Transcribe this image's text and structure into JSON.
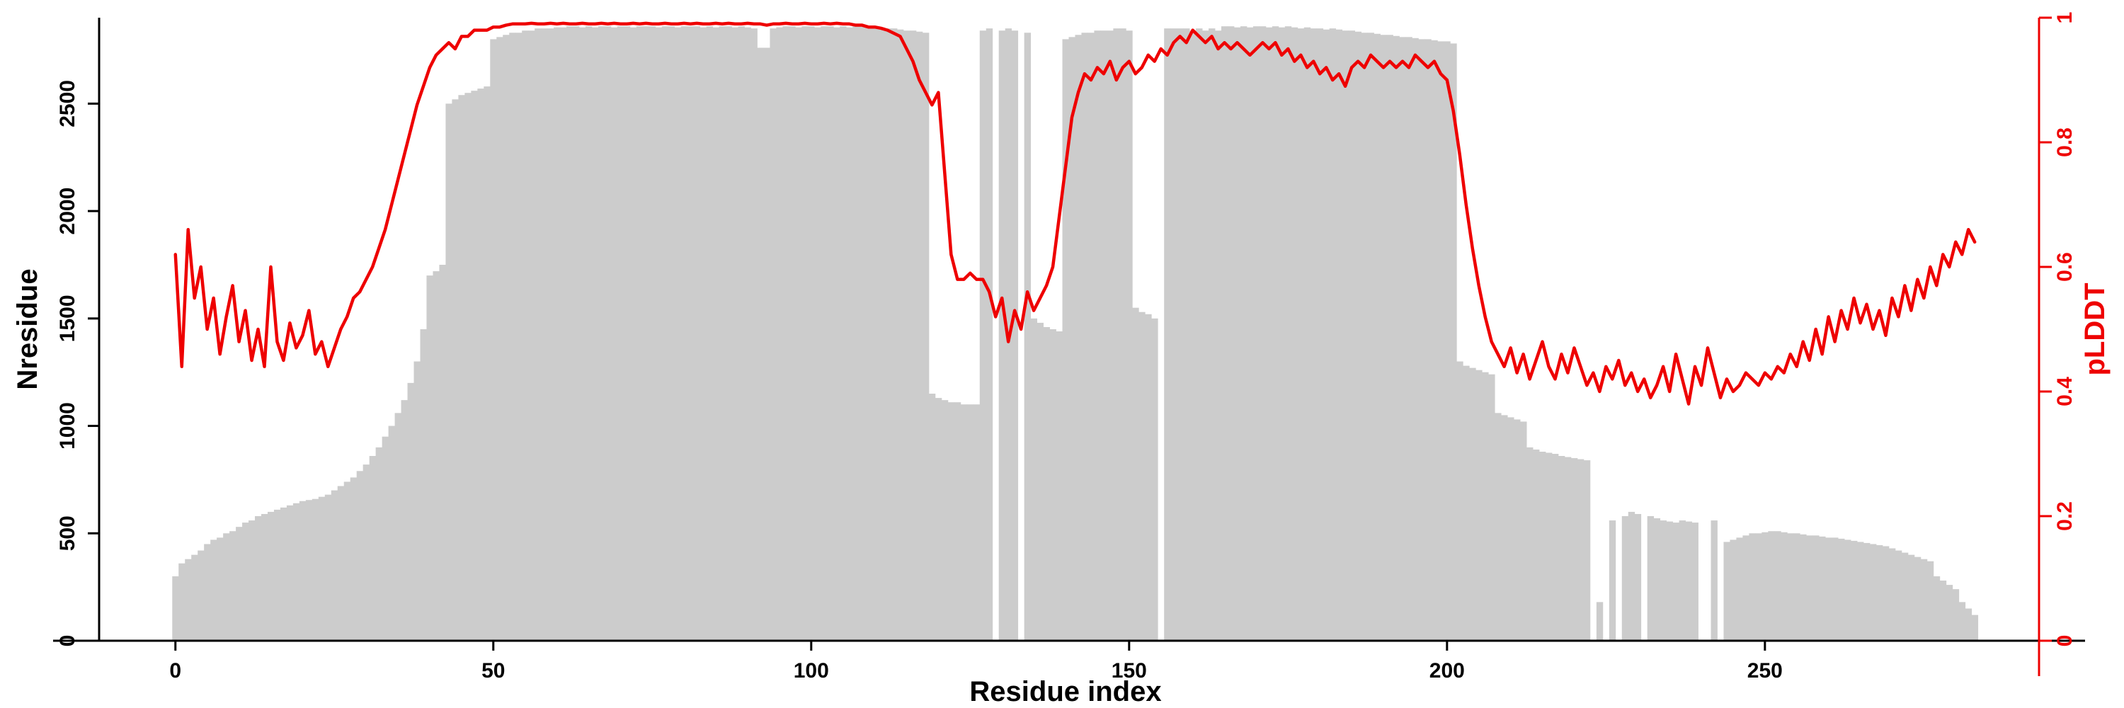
{
  "chart_data": {
    "type": "bar",
    "subtype": "bar-with-line-overlay",
    "title": "",
    "xlabel": "Residue index",
    "ylabel_left": "Nresidue",
    "ylabel_right": "pLDDT",
    "legend": "none",
    "grid": false,
    "x_start": 0,
    "x_step": 1,
    "xlim": [
      -12,
      292
    ],
    "ylim_left": [
      0,
      2900
    ],
    "ylim_right": [
      0,
      1
    ],
    "x_ticks": [
      0,
      50,
      100,
      150,
      200,
      250
    ],
    "y_ticks_left": [
      0,
      500,
      1000,
      1500,
      2000,
      2500
    ],
    "y_ticks_right": [
      0,
      0.2,
      0.4,
      0.6,
      0.8,
      1
    ],
    "bar_color": "#cccccc",
    "line_color": "#ee0000",
    "axis_color": "#000000",
    "bars": [
      300,
      360,
      380,
      400,
      420,
      450,
      470,
      480,
      500,
      510,
      530,
      550,
      560,
      580,
      590,
      600,
      610,
      620,
      630,
      640,
      650,
      655,
      660,
      670,
      680,
      700,
      720,
      740,
      760,
      790,
      820,
      860,
      900,
      950,
      1000,
      1060,
      1120,
      1200,
      1300,
      1450,
      1700,
      1720,
      1750,
      2500,
      2520,
      2540,
      2550,
      2560,
      2570,
      2580,
      2800,
      2810,
      2820,
      2830,
      2830,
      2840,
      2840,
      2850,
      2850,
      2850,
      2855,
      2855,
      2860,
      2860,
      2855,
      2860,
      2855,
      2860,
      2860,
      2855,
      2860,
      2860,
      2855,
      2860,
      2860,
      2860,
      2855,
      2860,
      2860,
      2855,
      2860,
      2860,
      2860,
      2855,
      2860,
      2855,
      2860,
      2860,
      2855,
      2860,
      2855,
      2850,
      2760,
      2760,
      2850,
      2855,
      2860,
      2860,
      2855,
      2860,
      2860,
      2855,
      2860,
      2860,
      2855,
      2860,
      2855,
      2860,
      2860,
      2855,
      2860,
      2855,
      2850,
      2850,
      2845,
      2840,
      2840,
      2835,
      2830,
      1150,
      1130,
      1120,
      1110,
      1110,
      1100,
      1100,
      1100,
      2840,
      2850,
      0,
      2840,
      2850,
      2840,
      0,
      2830,
      1500,
      1480,
      1460,
      1450,
      1440,
      2800,
      2810,
      2820,
      2830,
      2830,
      2840,
      2840,
      2840,
      2850,
      2850,
      2840,
      1550,
      1530,
      1520,
      1500,
      0,
      2850,
      2850,
      2850,
      2850,
      2840,
      2850,
      2840,
      2850,
      2840,
      2860,
      2860,
      2855,
      2860,
      2855,
      2860,
      2860,
      2855,
      2860,
      2855,
      2860,
      2855,
      2850,
      2855,
      2850,
      2850,
      2845,
      2850,
      2845,
      2840,
      2840,
      2835,
      2830,
      2830,
      2825,
      2820,
      2820,
      2815,
      2810,
      2810,
      2805,
      2800,
      2800,
      2795,
      2790,
      2790,
      2780,
      1300,
      1280,
      1270,
      1260,
      1250,
      1240,
      1060,
      1050,
      1040,
      1030,
      1020,
      900,
      890,
      880,
      875,
      870,
      860,
      855,
      850,
      845,
      840,
      0,
      180,
      0,
      560,
      0,
      580,
      600,
      590,
      0,
      580,
      570,
      560,
      555,
      550,
      560,
      555,
      550,
      0,
      0,
      560,
      0,
      460,
      470,
      480,
      490,
      500,
      500,
      505,
      510,
      510,
      505,
      500,
      500,
      495,
      490,
      490,
      485,
      480,
      480,
      475,
      470,
      465,
      460,
      455,
      450,
      445,
      440,
      430,
      420,
      410,
      400,
      390,
      380,
      370,
      300,
      280,
      260,
      240,
      180,
      150,
      120
    ],
    "plddt": [
      0.62,
      0.44,
      0.66,
      0.55,
      0.6,
      0.5,
      0.55,
      0.46,
      0.52,
      0.57,
      0.48,
      0.53,
      0.45,
      0.5,
      0.44,
      0.6,
      0.48,
      0.45,
      0.51,
      0.47,
      0.49,
      0.53,
      0.46,
      0.48,
      0.44,
      0.47,
      0.5,
      0.52,
      0.55,
      0.56,
      0.58,
      0.6,
      0.63,
      0.66,
      0.7,
      0.74,
      0.78,
      0.82,
      0.86,
      0.89,
      0.92,
      0.94,
      0.95,
      0.96,
      0.95,
      0.97,
      0.97,
      0.98,
      0.98,
      0.98,
      0.985,
      0.985,
      0.988,
      0.99,
      0.99,
      0.99,
      0.991,
      0.99,
      0.99,
      0.991,
      0.99,
      0.991,
      0.99,
      0.99,
      0.991,
      0.99,
      0.99,
      0.991,
      0.99,
      0.991,
      0.99,
      0.99,
      0.991,
      0.99,
      0.991,
      0.99,
      0.99,
      0.991,
      0.99,
      0.99,
      0.991,
      0.99,
      0.991,
      0.99,
      0.99,
      0.991,
      0.99,
      0.991,
      0.99,
      0.99,
      0.991,
      0.99,
      0.99,
      0.988,
      0.99,
      0.99,
      0.991,
      0.99,
      0.99,
      0.991,
      0.99,
      0.99,
      0.991,
      0.99,
      0.991,
      0.99,
      0.99,
      0.988,
      0.988,
      0.985,
      0.985,
      0.983,
      0.98,
      0.975,
      0.97,
      0.95,
      0.93,
      0.9,
      0.88,
      0.86,
      0.88,
      0.75,
      0.62,
      0.58,
      0.58,
      0.59,
      0.58,
      0.58,
      0.56,
      0.52,
      0.55,
      0.48,
      0.53,
      0.5,
      0.56,
      0.53,
      0.55,
      0.57,
      0.6,
      0.68,
      0.76,
      0.84,
      0.88,
      0.91,
      0.9,
      0.92,
      0.91,
      0.93,
      0.9,
      0.92,
      0.93,
      0.91,
      0.92,
      0.94,
      0.93,
      0.95,
      0.94,
      0.96,
      0.97,
      0.96,
      0.98,
      0.97,
      0.96,
      0.97,
      0.95,
      0.96,
      0.95,
      0.96,
      0.95,
      0.94,
      0.95,
      0.96,
      0.95,
      0.96,
      0.94,
      0.95,
      0.93,
      0.94,
      0.92,
      0.93,
      0.91,
      0.92,
      0.9,
      0.91,
      0.89,
      0.92,
      0.93,
      0.92,
      0.94,
      0.93,
      0.92,
      0.93,
      0.92,
      0.93,
      0.92,
      0.94,
      0.93,
      0.92,
      0.93,
      0.91,
      0.9,
      0.85,
      0.78,
      0.7,
      0.63,
      0.57,
      0.52,
      0.48,
      0.46,
      0.44,
      0.47,
      0.43,
      0.46,
      0.42,
      0.45,
      0.48,
      0.44,
      0.42,
      0.46,
      0.43,
      0.47,
      0.44,
      0.41,
      0.43,
      0.4,
      0.44,
      0.42,
      0.45,
      0.41,
      0.43,
      0.4,
      0.42,
      0.39,
      0.41,
      0.44,
      0.4,
      0.46,
      0.42,
      0.38,
      0.44,
      0.41,
      0.47,
      0.43,
      0.39,
      0.42,
      0.4,
      0.41,
      0.43,
      0.42,
      0.41,
      0.43,
      0.42,
      0.44,
      0.43,
      0.46,
      0.44,
      0.48,
      0.45,
      0.5,
      0.46,
      0.52,
      0.48,
      0.53,
      0.5,
      0.55,
      0.51,
      0.54,
      0.5,
      0.53,
      0.49,
      0.55,
      0.52,
      0.57,
      0.53,
      0.58,
      0.55,
      0.6,
      0.57,
      0.62,
      0.6,
      0.64,
      0.62,
      0.66,
      0.64
    ]
  }
}
